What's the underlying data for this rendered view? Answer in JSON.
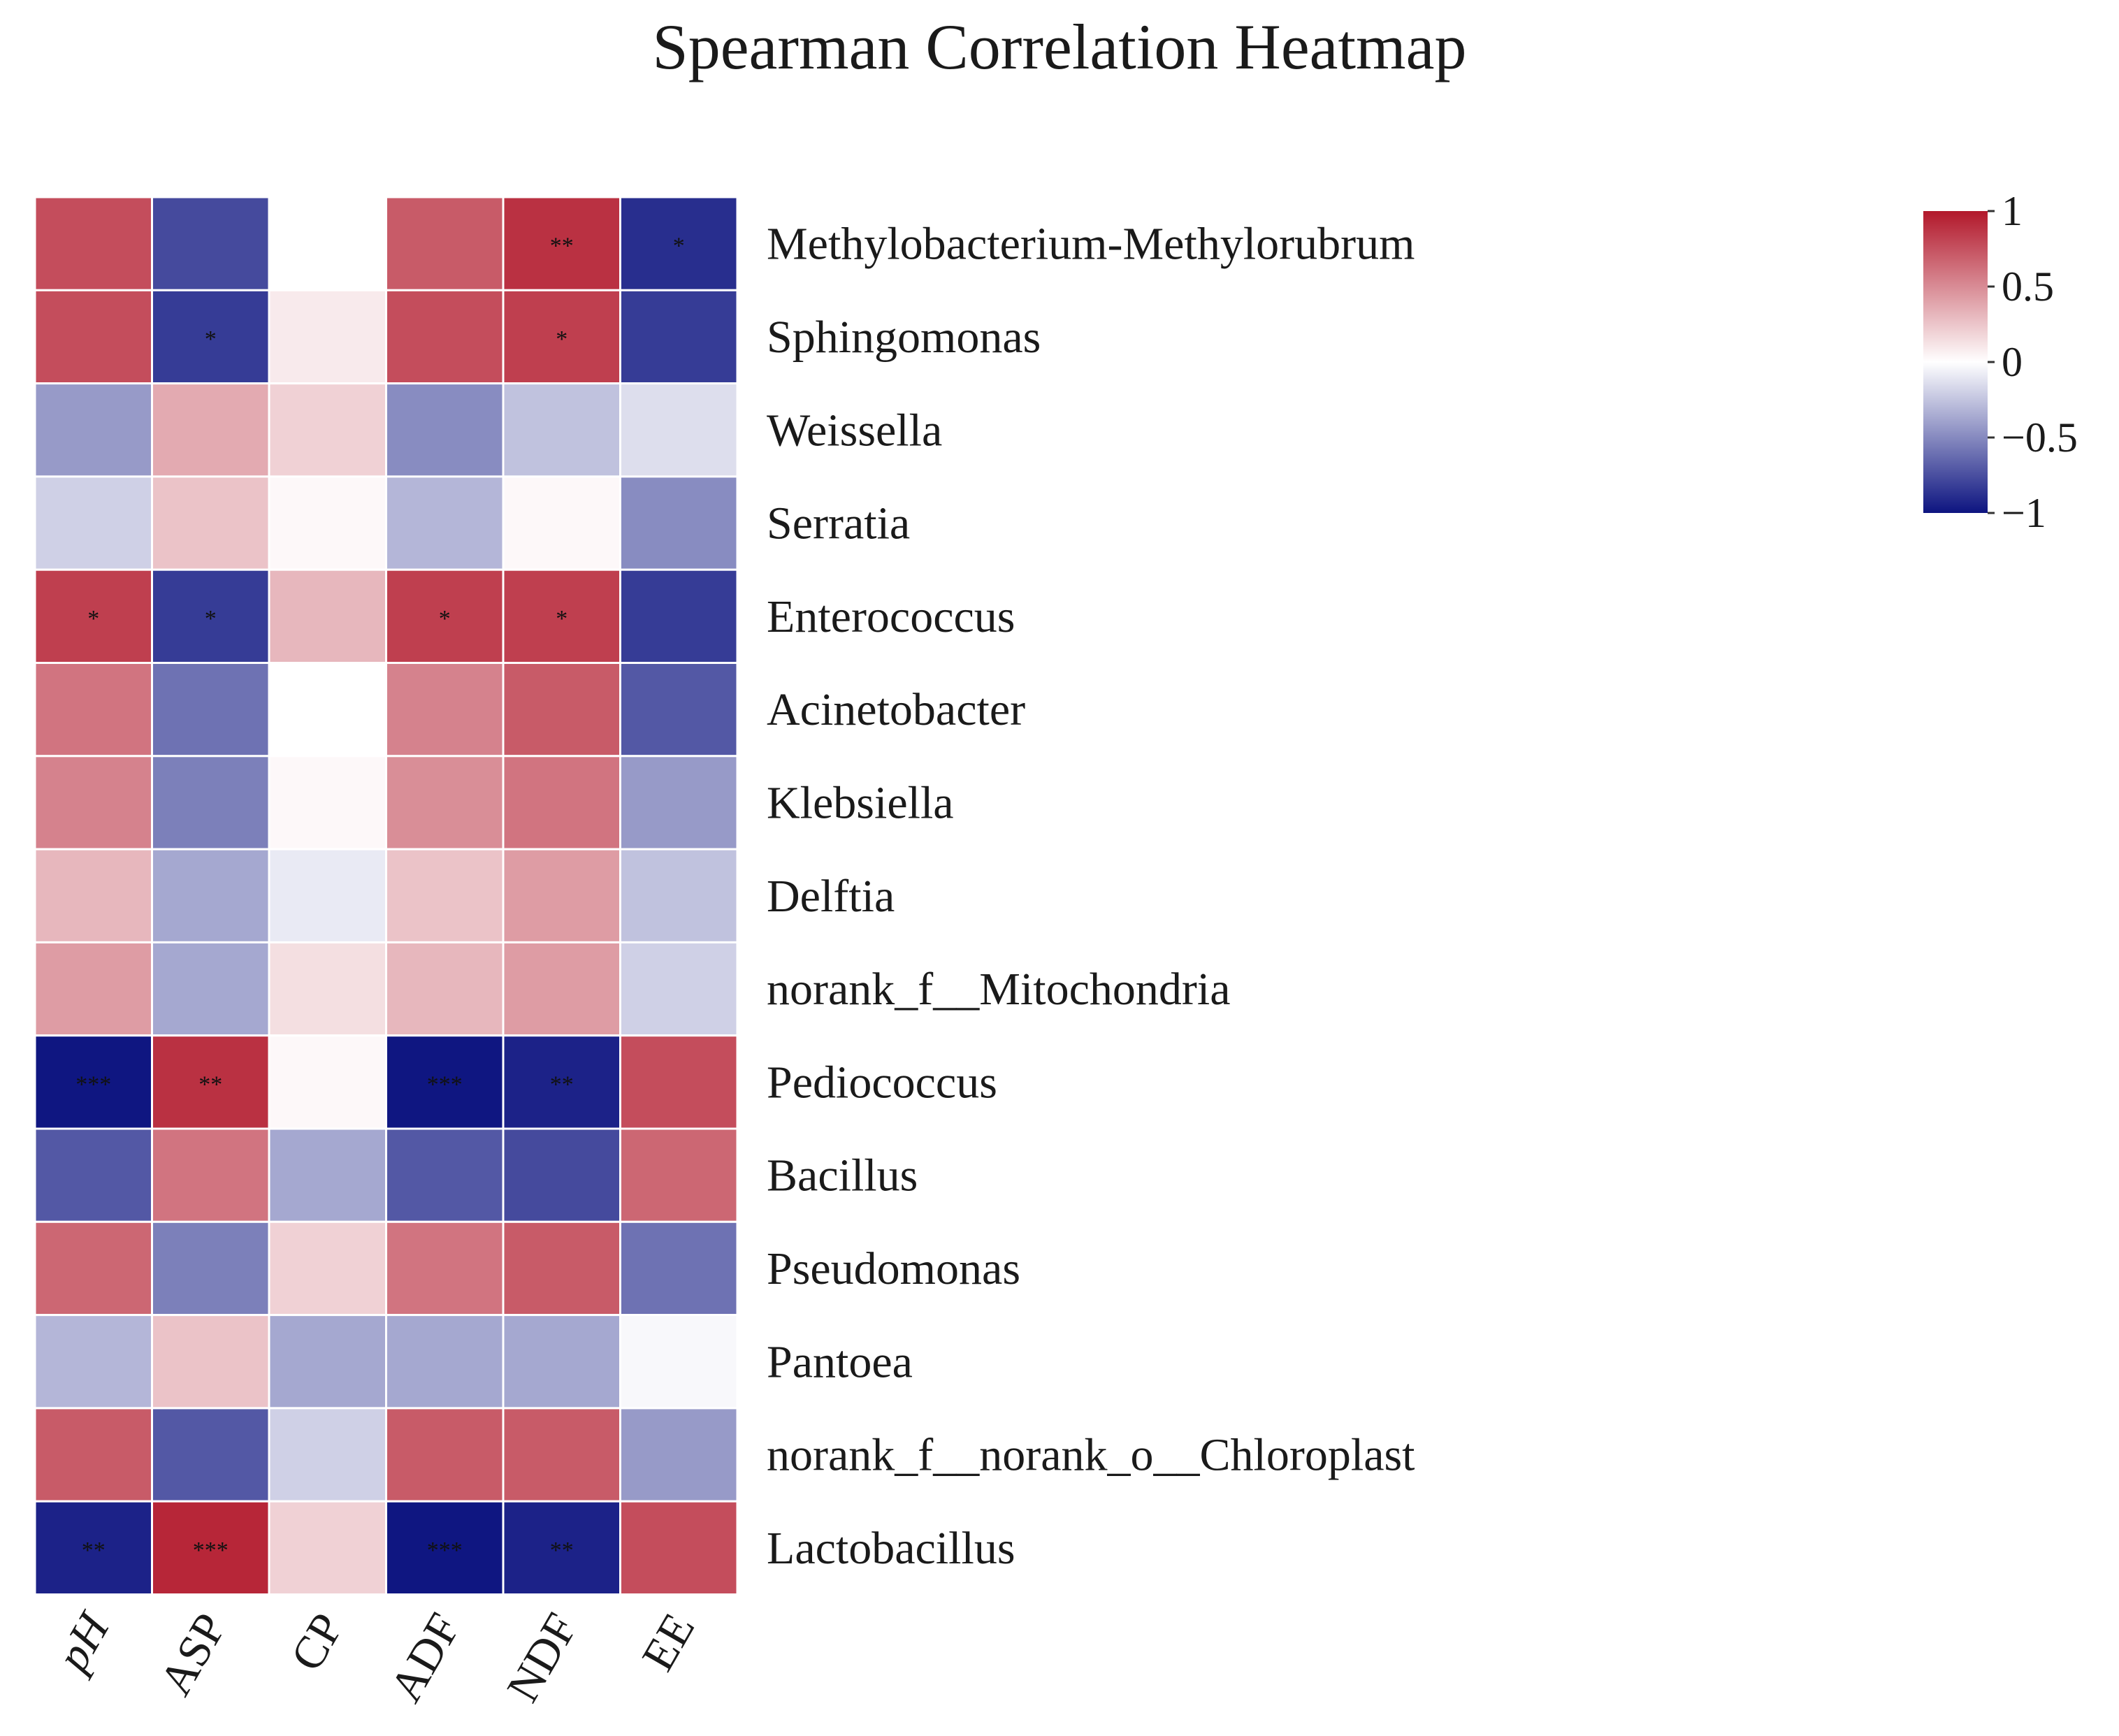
{
  "chart_data": {
    "type": "heatmap",
    "title": "Spearman Correlation Heatmap",
    "x_categories": [
      "pH",
      "ASP",
      "CP",
      "ADF",
      "NDF",
      "EE"
    ],
    "y_categories": [
      "Methylobacterium-Methylorubrum",
      "Sphingomonas",
      "Weissella",
      "Serratia",
      "Enterococcus",
      "Acinetobacter",
      "Klebsiella",
      "Delftia",
      "norank_f__Mitochondria",
      "Pediococcus",
      "Bacillus",
      "Pseudomonas",
      "Pantoea",
      "norank_f__norank_o__Chloroplast",
      "Lactobacillus"
    ],
    "values": [
      [
        0.77,
        -0.77,
        0.0,
        0.71,
        0.89,
        -0.89
      ],
      [
        0.77,
        -0.83,
        0.09,
        0.77,
        0.83,
        -0.83
      ],
      [
        -0.43,
        0.37,
        0.2,
        -0.49,
        -0.26,
        -0.14
      ],
      [
        -0.2,
        0.26,
        0.03,
        -0.31,
        0.03,
        -0.49
      ],
      [
        0.83,
        -0.83,
        0.31,
        0.83,
        0.83,
        -0.83
      ],
      [
        0.6,
        -0.6,
        0.0,
        0.54,
        0.71,
        -0.71
      ],
      [
        0.54,
        -0.54,
        0.03,
        0.49,
        0.6,
        -0.43
      ],
      [
        0.31,
        -0.37,
        -0.09,
        0.26,
        0.43,
        -0.26
      ],
      [
        0.43,
        -0.37,
        0.14,
        0.31,
        0.43,
        -0.2
      ],
      [
        -0.99,
        0.89,
        0.03,
        -0.99,
        -0.94,
        0.77
      ],
      [
        -0.71,
        0.6,
        -0.37,
        -0.71,
        -0.77,
        0.66
      ],
      [
        0.66,
        -0.54,
        0.2,
        0.6,
        0.71,
        -0.6
      ],
      [
        -0.31,
        0.26,
        -0.37,
        -0.37,
        -0.37,
        -0.03
      ],
      [
        0.71,
        -0.71,
        -0.2,
        0.71,
        0.71,
        -0.43
      ],
      [
        -0.94,
        0.94,
        0.2,
        -0.99,
        -0.94,
        0.77
      ]
    ],
    "significance": [
      [
        "",
        "",
        "",
        "",
        "**",
        "*"
      ],
      [
        "",
        "*",
        "",
        "",
        "*",
        ""
      ],
      [
        "",
        "",
        "",
        "",
        "",
        ""
      ],
      [
        "",
        "",
        "",
        "",
        "",
        ""
      ],
      [
        "*",
        "*",
        "",
        "*",
        "*",
        ""
      ],
      [
        "",
        "",
        "",
        "",
        "",
        ""
      ],
      [
        "",
        "",
        "",
        "",
        "",
        ""
      ],
      [
        "",
        "",
        "",
        "",
        "",
        ""
      ],
      [
        "",
        "",
        "",
        "",
        "",
        ""
      ],
      [
        "***",
        "**",
        "",
        "***",
        "**",
        ""
      ],
      [
        "",
        "",
        "",
        "",
        "",
        ""
      ],
      [
        "",
        "",
        "",
        "",
        "",
        ""
      ],
      [
        "",
        "",
        "",
        "",
        "",
        ""
      ],
      [
        "",
        "",
        "",
        "",
        "",
        ""
      ],
      [
        "**",
        "***",
        "",
        "***",
        "**",
        ""
      ]
    ],
    "color_scale": {
      "min": -1,
      "max": 1,
      "low_color": "#0d1480",
      "mid_color": "#ffffff",
      "high_color": "#b2182b",
      "ticks": [
        1,
        0.5,
        0,
        -0.5,
        -1
      ],
      "tick_labels": [
        "1",
        "0.5",
        "0",
        "−0.5",
        "−1"
      ]
    },
    "legend_placement": "top-right",
    "italic_x_labels": [
      "pH"
    ]
  }
}
